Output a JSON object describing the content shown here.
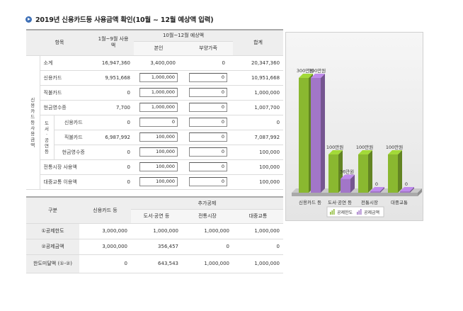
{
  "title": "2019년 신용카드등 사용금액 확인(10월 ~ 12월 예상액 입력)",
  "usage": {
    "headers": {
      "item": "항목",
      "jan_sep": "1월~9월 사용액",
      "oct_dec": "10월~12월 예상액",
      "self": "본인",
      "dependents": "부양가족",
      "total": "합계"
    },
    "group_credit": "신용카드등 사용금액",
    "group_book": "도서·공연등",
    "rows": [
      {
        "label": "소계",
        "jan_sep": "16,947,360",
        "self": "3,400,000",
        "dep": "0",
        "total": "20,347,360"
      },
      {
        "label": "신용카드",
        "jan_sep": "9,951,668",
        "self": "1,000,000",
        "dep": "0",
        "total": "10,951,668"
      },
      {
        "label": "직불카드",
        "jan_sep": "0",
        "self": "1,000,000",
        "dep": "0",
        "total": "1,000,000"
      },
      {
        "label": "현금영수증",
        "jan_sep": "7,700",
        "self": "1,000,000",
        "dep": "0",
        "total": "1,007,700"
      },
      {
        "label": "신용카드",
        "jan_sep": "0",
        "self": "0",
        "dep": "0",
        "total": "0"
      },
      {
        "label": "직불카드",
        "jan_sep": "6,987,992",
        "self": "100,000",
        "dep": "0",
        "total": "7,087,992"
      },
      {
        "label": "현금영수증",
        "jan_sep": "0",
        "self": "100,000",
        "dep": "0",
        "total": "100,000"
      },
      {
        "label": "전통시장 사용액",
        "jan_sep": "0",
        "self": "100,000",
        "dep": "0",
        "total": "100,000"
      },
      {
        "label": "대중교통 이용액",
        "jan_sep": "0",
        "self": "100,000",
        "dep": "0",
        "total": "100,000"
      }
    ]
  },
  "deduction": {
    "headers": {
      "category": "구분",
      "credit": "신용카드 등",
      "additional": "추가공제",
      "book": "도서·공연 등",
      "market": "전통시장",
      "transit": "대중교통"
    },
    "rows": [
      {
        "label": "①공제한도",
        "credit": "3,000,000",
        "book": "1,000,000",
        "market": "1,000,000",
        "transit": "1,000,000"
      },
      {
        "label": "②공제금액",
        "credit": "3,000,000",
        "book": "356,457",
        "market": "0",
        "transit": "0"
      },
      {
        "label": "한도미달액 (①-②)",
        "credit": "0",
        "book": "643,543",
        "market": "1,000,000",
        "transit": "1,000,000"
      }
    ]
  },
  "chart_data": {
    "type": "bar",
    "categories": [
      "신용카드 등",
      "도서·공연 등",
      "전통시장",
      "대중교통"
    ],
    "series": [
      {
        "name": "공제한도",
        "values": [
          300,
          100,
          100,
          100
        ],
        "labels": [
          "300만원",
          "100만원",
          "100만원",
          "100만원"
        ],
        "color": "#8ab830"
      },
      {
        "name": "공제금액",
        "values": [
          300,
          36,
          0,
          0
        ],
        "labels": [
          "300만원",
          "36만원",
          "0",
          "0"
        ],
        "color": "#a276c8"
      }
    ],
    "ylim": [
      0,
      300
    ],
    "legend_position": "bottom"
  }
}
